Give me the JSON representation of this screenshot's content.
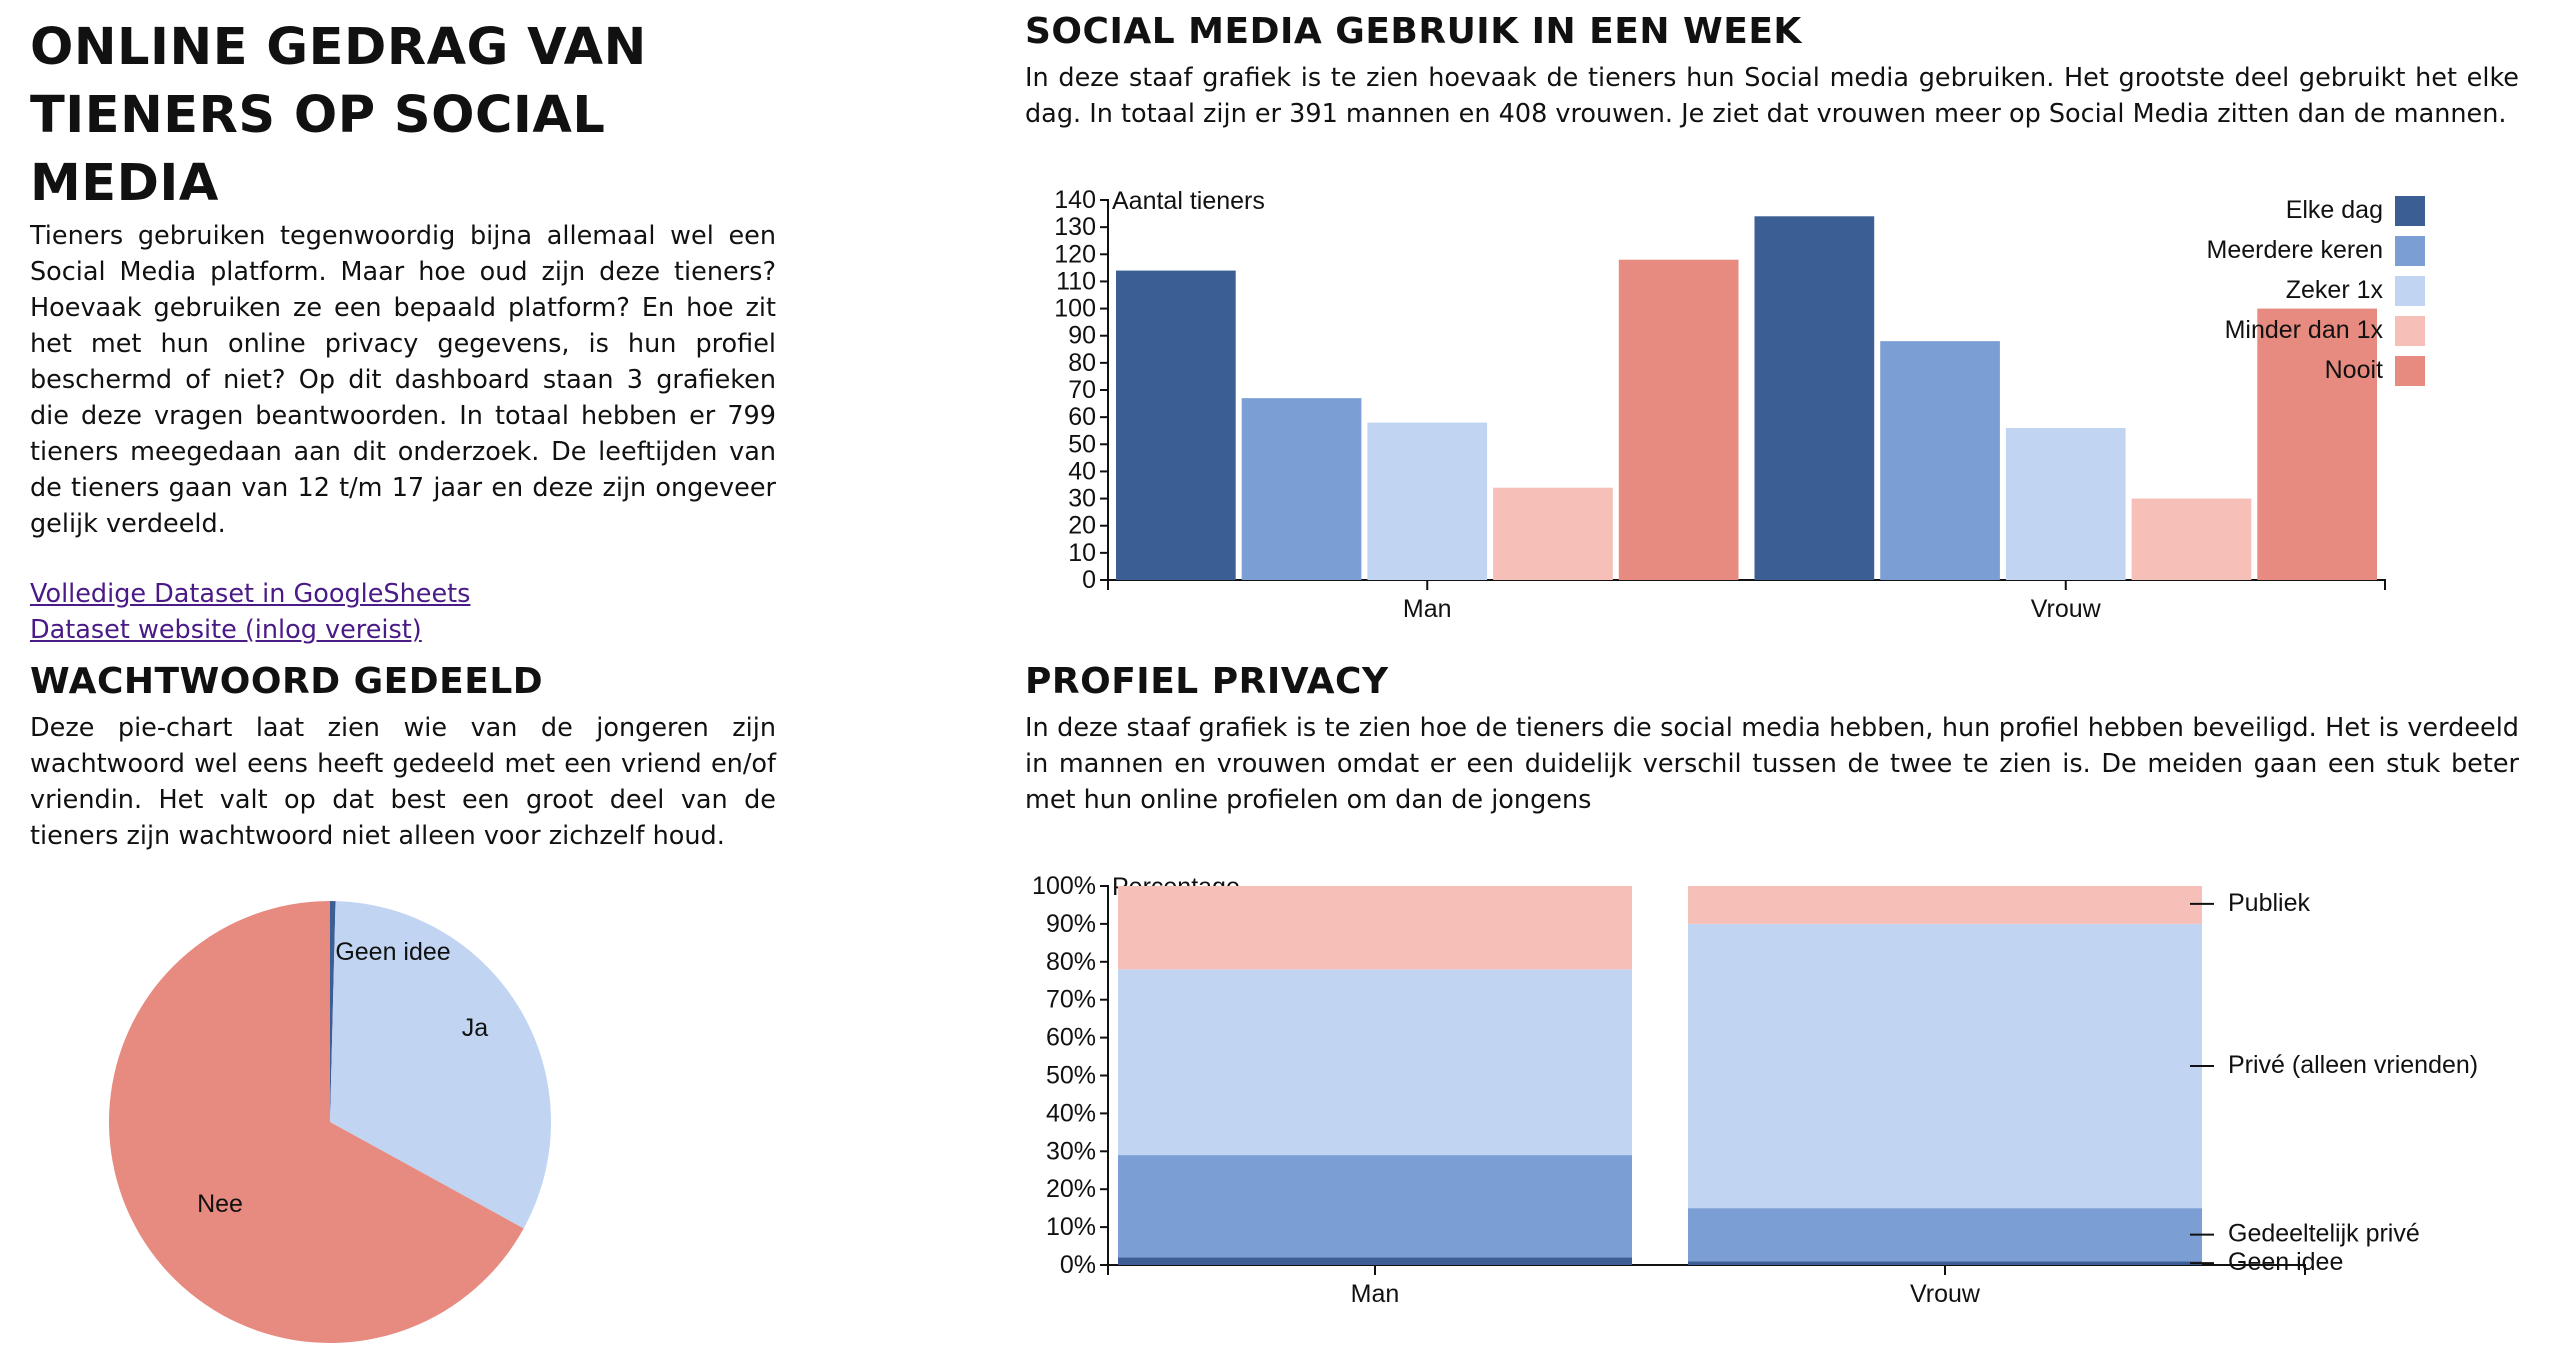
{
  "header": {
    "title": "ONLINE GEDRAG VAN TIENERS OP SOCIAL MEDIA",
    "intro": "Tieners gebruiken tegenwoordig bijna allemaal wel een Social Media platform. Maar hoe oud zijn deze tieners? Hoevaak gebruiken ze een bepaald platform? En hoe zit het met hun online privacy gegevens, is hun profiel beschermd of niet? Op dit dashboard staan 3 grafieken die deze vragen beantwoorden. In totaal hebben er 799 tieners meegedaan aan dit onderzoek. De leeftijden van de tieners gaan van 12 t/m 17 jaar en deze zijn ongeveer gelijk verdeeld.",
    "link1": "Volledige Dataset in GoogleSheets",
    "link2": "Dataset website (inlog vereist)"
  },
  "usage": {
    "title": "SOCIAL MEDIA GEBRUIK IN EEN WEEK",
    "text": "In deze staaf grafiek is te zien hoevaak de tieners hun Social media gebruiken. Het grootste deel gebruikt het elke dag. In totaal zijn er 391 mannen en 408 vrouwen. Je ziet dat vrouwen meer op Social Media zitten dan de mannen."
  },
  "password": {
    "title": "WACHTWOORD GEDEELD",
    "text": "Deze pie-chart laat zien wie van de jongeren zijn wachtwoord wel eens heeft gedeeld met een vriend en/of vriendin. Het valt op dat best een groot deel van de tieners zijn wachtwoord niet alleen voor zichzelf houd."
  },
  "privacy": {
    "title": "PROFIEL PRIVACY",
    "text": "In deze staaf grafiek is te zien hoe de tieners die social media hebben, hun profiel hebben beveiligd. Het is verdeeld in mannen en vrouwen omdat er een duidelijk verschil tussen de twee te zien is. De meiden gaan een stuk beter met hun online profielen om dan de jongens"
  },
  "chart_data": [
    {
      "type": "bar",
      "ylabel": "Aantal tieners",
      "ylim": [
        0,
        140
      ],
      "yticks": [
        0,
        10,
        20,
        30,
        40,
        50,
        60,
        70,
        80,
        90,
        100,
        110,
        120,
        130,
        140
      ],
      "categories": [
        "Man",
        "Vrouw"
      ],
      "series": [
        {
          "name": "Elke dag",
          "color": "#3b5e94",
          "values": [
            114,
            134
          ]
        },
        {
          "name": "Meerdere keren",
          "color": "#7b9ed4",
          "values": [
            67,
            88
          ]
        },
        {
          "name": "Zeker 1x",
          "color": "#c1d5f2",
          "values": [
            58,
            56
          ]
        },
        {
          "name": "Minder dan 1x",
          "color": "#f6c0b9",
          "values": [
            34,
            30
          ]
        },
        {
          "name": "Nooit",
          "color": "#e78b80",
          "values": [
            118,
            100
          ]
        }
      ],
      "legend_position": "top-right"
    },
    {
      "type": "pie",
      "slices": [
        {
          "label": "Geen idee",
          "value": 0.4,
          "color": "#3b5e94"
        },
        {
          "label": "Ja",
          "value": 32.6,
          "color": "#c1d5f2"
        },
        {
          "label": "Nee",
          "value": 67.0,
          "color": "#e78b80"
        }
      ]
    },
    {
      "type": "bar",
      "stacked": "percent",
      "ylabel": "Percentage",
      "ylim": [
        0,
        100
      ],
      "yticks": [
        "0%",
        "10%",
        "20%",
        "30%",
        "40%",
        "50%",
        "60%",
        "70%",
        "80%",
        "90%",
        "100%"
      ],
      "categories": [
        "Man",
        "Vrouw"
      ],
      "series": [
        {
          "name": "Geen idee",
          "color": "#3b5e94",
          "values": [
            2,
            1
          ]
        },
        {
          "name": "Gedeeltelijk privé",
          "color": "#7b9ed4",
          "values": [
            27,
            14
          ]
        },
        {
          "name": "Privé (alleen vrienden)",
          "color": "#c1d5f2",
          "values": [
            49,
            75
          ]
        },
        {
          "name": "Publiek",
          "color": "#f6c0b9",
          "values": [
            22,
            10
          ]
        }
      ],
      "legend_position": "right"
    }
  ]
}
